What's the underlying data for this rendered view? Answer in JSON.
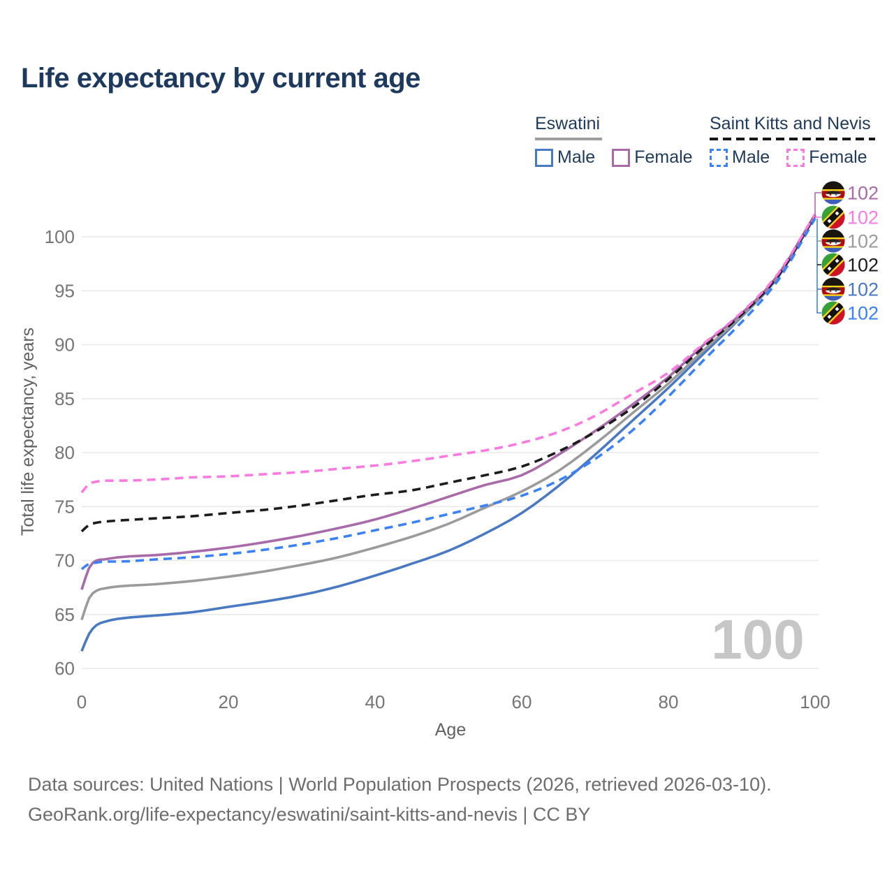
{
  "title": "Life expectancy by current age",
  "legend": {
    "groups": [
      {
        "label": "Eswatini",
        "style": "solid",
        "items": [
          {
            "label": "Male",
            "color": "#4a79c3"
          },
          {
            "label": "Female",
            "color": "#a86aa8"
          }
        ]
      },
      {
        "label": "Saint Kitts and Nevis",
        "style": "dashed",
        "items": [
          {
            "label": "Male",
            "color": "#3b82f6"
          },
          {
            "label": "Female",
            "color": "#fb7ae0"
          }
        ]
      }
    ]
  },
  "watermark": "100",
  "axes": {
    "x_label": "Age",
    "y_label": "Total life expectancy, years"
  },
  "end_labels": [
    {
      "flag": "eswatini",
      "series": "Eswatini Female",
      "value": "102",
      "color": "#a86aa8"
    },
    {
      "flag": "saint-kitts-and-nevis",
      "series": "Saint Kitts and Nevis Female",
      "value": "102",
      "color": "#fb7ae0"
    },
    {
      "flag": "eswatini",
      "series": "Eswatini Both sexes",
      "value": "102",
      "color": "#9b9b9b"
    },
    {
      "flag": "saint-kitts-and-nevis",
      "series": "Saint Kitts and Nevis Both sexes",
      "value": "102",
      "color": "#1c1c1c"
    },
    {
      "flag": "eswatini",
      "series": "Eswatini Male",
      "value": "102",
      "color": "#4a79c3"
    },
    {
      "flag": "saint-kitts-and-nevis",
      "series": "Saint Kitts and Nevis Male",
      "value": "102",
      "color": "#3b82f6"
    }
  ],
  "footer": {
    "line1": "Data sources: United Nations | World Population Prospects (2026, retrieved 2026-03-10).",
    "line2": "GeoRank.org/life-expectancy/eswatini/saint-kitts-and-nevis | CC BY"
  },
  "chart_data": {
    "type": "line",
    "title": "Life expectancy by current age",
    "xlabel": "Age",
    "ylabel": "Total life expectancy, years",
    "xlim": [
      0,
      100
    ],
    "ylim": [
      60,
      102.5
    ],
    "x_ticks": [
      0,
      20,
      40,
      60,
      80,
      100
    ],
    "y_ticks": [
      60,
      65,
      70,
      75,
      80,
      85,
      90,
      95,
      100
    ],
    "grid": "horizontal",
    "x": [
      0,
      1,
      2,
      3,
      5,
      10,
      15,
      20,
      25,
      30,
      35,
      40,
      45,
      50,
      55,
      60,
      65,
      70,
      75,
      80,
      85,
      90,
      95,
      100
    ],
    "series": [
      {
        "name": "Eswatini Male",
        "country": "Eswatini",
        "sex": "male",
        "dash": false,
        "color": "#4a79c3",
        "values": [
          61.6,
          63.2,
          64.0,
          64.3,
          64.6,
          64.9,
          65.2,
          65.7,
          66.2,
          66.8,
          67.6,
          68.6,
          69.7,
          70.9,
          72.5,
          74.4,
          76.9,
          79.8,
          82.9,
          86.0,
          89.3,
          92.6,
          96.3,
          101.9
        ]
      },
      {
        "name": "Eswatini Both sexes",
        "country": "Eswatini",
        "sex": "both",
        "dash": false,
        "color": "#9b9b9b",
        "values": [
          64.5,
          66.5,
          67.2,
          67.4,
          67.6,
          67.8,
          68.1,
          68.5,
          69.0,
          69.6,
          70.3,
          71.2,
          72.2,
          73.4,
          74.9,
          76.4,
          78.3,
          80.8,
          83.6,
          86.4,
          89.6,
          92.7,
          96.4,
          102.0
        ]
      },
      {
        "name": "Eswatini Female",
        "country": "Eswatini",
        "sex": "female",
        "dash": false,
        "color": "#a86aa8",
        "values": [
          67.3,
          69.3,
          70.0,
          70.1,
          70.3,
          70.5,
          70.8,
          71.2,
          71.7,
          72.3,
          73.0,
          73.8,
          74.8,
          75.9,
          77.0,
          77.9,
          79.8,
          82.0,
          84.4,
          87.0,
          90.1,
          92.9,
          96.5,
          102.1
        ]
      },
      {
        "name": "Saint Kitts and Nevis Male",
        "country": "Saint Kitts and Nevis",
        "sex": "male",
        "dash": true,
        "color": "#3b82f6",
        "values": [
          69.2,
          69.7,
          69.8,
          69.9,
          69.9,
          70.1,
          70.3,
          70.6,
          71.0,
          71.5,
          72.1,
          72.8,
          73.5,
          74.3,
          75.1,
          76.0,
          77.4,
          79.4,
          82.0,
          85.2,
          88.7,
          92.1,
          96.0,
          101.7
        ]
      },
      {
        "name": "Saint Kitts and Nevis Both sexes",
        "country": "Saint Kitts and Nevis",
        "sex": "both",
        "dash": true,
        "color": "#1c1c1c",
        "values": [
          72.7,
          73.3,
          73.5,
          73.6,
          73.7,
          73.9,
          74.1,
          74.4,
          74.7,
          75.1,
          75.6,
          76.1,
          76.5,
          77.2,
          77.9,
          78.7,
          80.1,
          81.9,
          84.1,
          86.8,
          89.9,
          92.8,
          96.4,
          102.0
        ]
      },
      {
        "name": "Saint Kitts and Nevis Female",
        "country": "Saint Kitts and Nevis",
        "sex": "female",
        "dash": true,
        "color": "#fb7ae0",
        "values": [
          76.3,
          77.1,
          77.3,
          77.4,
          77.4,
          77.5,
          77.7,
          77.8,
          78.0,
          78.2,
          78.5,
          78.8,
          79.2,
          79.7,
          80.2,
          80.9,
          81.9,
          83.4,
          85.4,
          87.4,
          90.2,
          93.0,
          96.6,
          102.1
        ]
      }
    ],
    "legend_position": "top-right",
    "end_value_label": "102"
  }
}
